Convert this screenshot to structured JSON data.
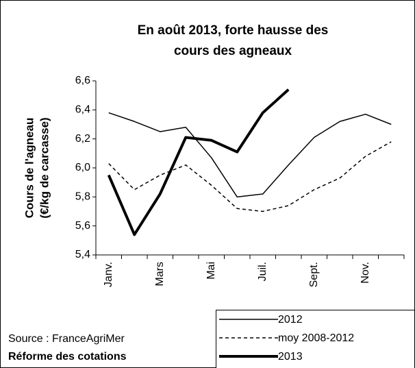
{
  "chart_data": {
    "type": "line",
    "title": [
      "En août 2013, forte hausse des",
      "cours  des agneaux"
    ],
    "y_label": [
      "Cours de l'agneau",
      "(€/kg de carcasse)"
    ],
    "source": "Source : FranceAgriMer",
    "note": "Réforme des cotations",
    "categories": [
      "Janv.",
      null,
      "Mars",
      null,
      "Mai",
      null,
      "Juil.",
      null,
      "Sept.",
      null,
      "Nov.",
      null
    ],
    "series": [
      {
        "name": "2012",
        "color": "#000000",
        "dash": "solid",
        "width": 1.5,
        "values": [
          6.38,
          6.32,
          6.25,
          6.28,
          6.07,
          5.8,
          5.82,
          6.02,
          6.21,
          6.32,
          6.37,
          6.3
        ]
      },
      {
        "name": "moy 2008-2012",
        "color": "#000000",
        "dash": "dashed",
        "width": 1.5,
        "values": [
          6.03,
          5.85,
          5.95,
          6.02,
          5.88,
          5.72,
          5.7,
          5.74,
          5.85,
          5.93,
          6.08,
          6.18
        ]
      },
      {
        "name": "2013",
        "color": "#000000",
        "dash": "solid",
        "width": 4,
        "values": [
          5.95,
          5.54,
          5.82,
          6.21,
          6.19,
          6.11,
          6.38,
          6.54,
          null,
          null,
          null,
          null
        ]
      }
    ],
    "ylim": [
      5.4,
      6.6
    ],
    "yticks": [
      {
        "value": 5.4,
        "label": "5,4"
      },
      {
        "value": 5.6,
        "label": "5,6"
      },
      {
        "value": 5.8,
        "label": "5,8"
      },
      {
        "value": 6.0,
        "label": "6,0"
      },
      {
        "value": 6.2,
        "label": "6,2"
      },
      {
        "value": 6.4,
        "label": "6,4"
      },
      {
        "value": 6.6,
        "label": "6,6"
      }
    ],
    "grid": false
  }
}
